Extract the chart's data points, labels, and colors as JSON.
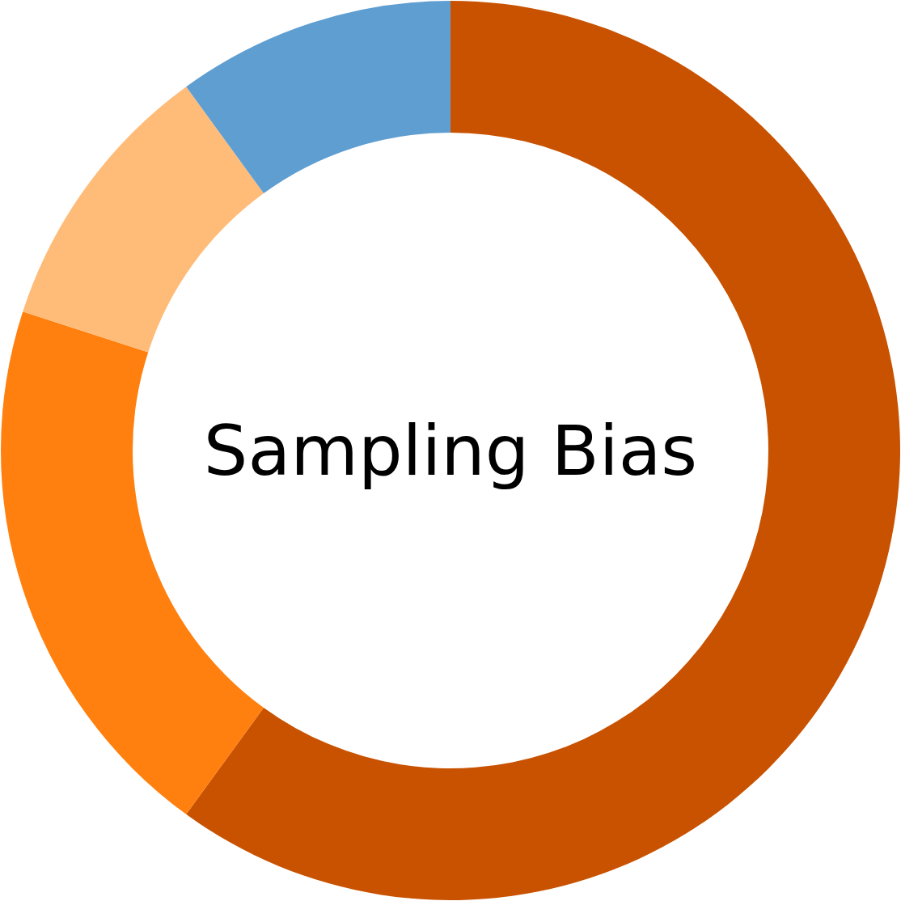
{
  "chart_data": {
    "type": "donut",
    "title": "Sampling Bias",
    "categories": [
      null,
      null,
      null,
      null
    ],
    "values": [
      60,
      20,
      10,
      10
    ],
    "colors": [
      "#c85200",
      "#ff800e",
      "#ffbc79",
      "#5f9ed1"
    ],
    "legend": false
  }
}
